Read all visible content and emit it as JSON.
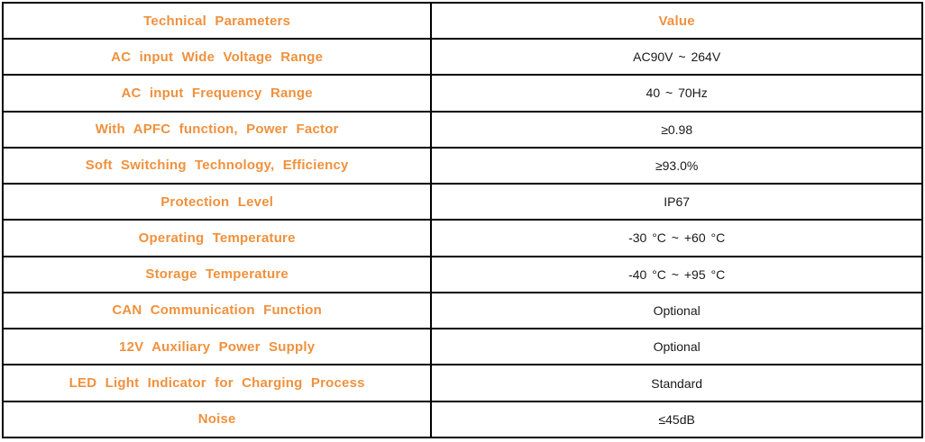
{
  "table": {
    "accent_color": "#F0913D",
    "border_color": "#000000",
    "text_color": "#1a1a1a",
    "headers": [
      "Technical Parameters",
      "Value"
    ],
    "rows": [
      {
        "param": "AC input Wide Voltage Range",
        "value": "AC90V ~ 264V"
      },
      {
        "param": "AC input Frequency Range",
        "value": "40 ~ 70Hz"
      },
      {
        "param": "With APFC function, Power Factor",
        "value": "≥0.98"
      },
      {
        "param": "Soft Switching Technology, Efficiency",
        "value": "≥93.0%"
      },
      {
        "param": "Protection Level",
        "value": "IP67"
      },
      {
        "param": "Operating Temperature",
        "value": "-30 °C ~ +60 °C"
      },
      {
        "param": "Storage Temperature",
        "value": "-40 °C ~ +95 °C"
      },
      {
        "param": "CAN Communication Function",
        "value": "Optional"
      },
      {
        "param": "12V Auxiliary Power Supply",
        "value": "Optional"
      },
      {
        "param": "LED Light Indicator for Charging Process",
        "value": "Standard"
      },
      {
        "param": "Noise",
        "value": "≤45dB"
      }
    ]
  }
}
